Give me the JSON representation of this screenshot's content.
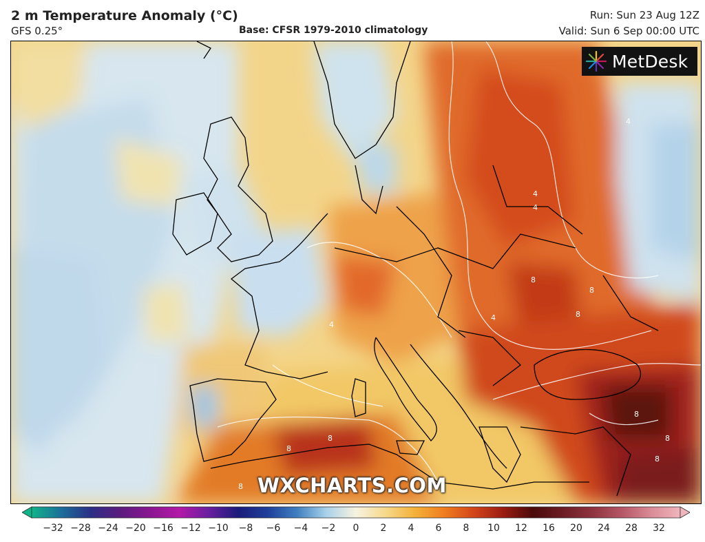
{
  "header": {
    "title": "2 m Temperature Anomaly (°C)",
    "model": "GFS 0.25°",
    "base": "Base: CFSR 1979-2010 climatology",
    "run": "Run: Sun 23 Aug 12Z",
    "valid": "Valid: Sun 6 Sep 00:00 UTC"
  },
  "logo": {
    "text": "MetDesk",
    "icon": "starburst-logo-icon"
  },
  "watermark": "WXCHARTS.COM",
  "map": {
    "region": "Europe",
    "contour_labels": [
      "4",
      "8"
    ]
  },
  "colorbar": {
    "ticks": [
      "−32",
      "−28",
      "−24",
      "−20",
      "−16",
      "−12",
      "−10",
      "−8",
      "−6",
      "−4",
      "−2",
      "0",
      "2",
      "4",
      "6",
      "8",
      "10",
      "12",
      "16",
      "20",
      "24",
      "28",
      "32"
    ],
    "colors": [
      "#10b48a",
      "#1b6f9a",
      "#2b2f86",
      "#5a1c7e",
      "#8a1691",
      "#b21aa8",
      "#6a1fa0",
      "#1a1c7a",
      "#1e3f9a",
      "#3f7fc0",
      "#a9d2ea",
      "#f7f3e0",
      "#f6d98a",
      "#f4b13a",
      "#ef7c1e",
      "#d2451a",
      "#9a1c12",
      "#4a0b0b",
      "#6b1c22",
      "#8e3340",
      "#b55565",
      "#d98a96",
      "#f0b6bc"
    ]
  }
}
